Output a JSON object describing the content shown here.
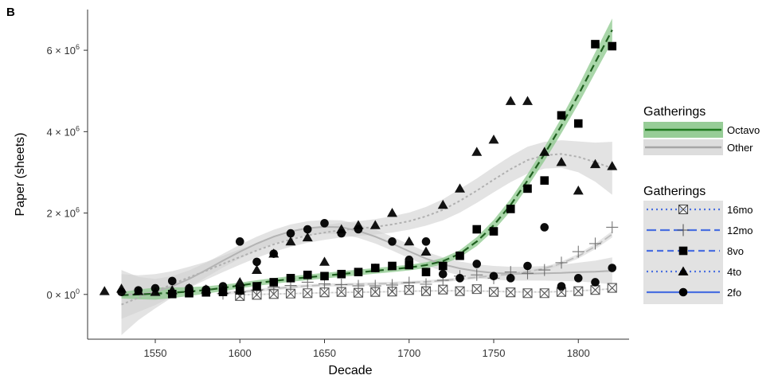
{
  "panel_tag": "B",
  "chart_data": {
    "type": "scatter",
    "xlabel": "Decade",
    "ylabel": "Paper (sheets)",
    "xlim": [
      1510,
      1830
    ],
    "ylim": [
      -1100000,
      7000000
    ],
    "x_ticks": [
      1550,
      1600,
      1650,
      1700,
      1750,
      1800
    ],
    "y_ticks": [
      {
        "value": 0,
        "mantissa": "0",
        "exponent": "0"
      },
      {
        "value": 2000000,
        "mantissa": "2",
        "exponent": "6"
      },
      {
        "value": 4000000,
        "mantissa": "4",
        "exponent": "6"
      },
      {
        "value": 6000000,
        "mantissa": "6",
        "exponent": "6"
      }
    ],
    "grid": false,
    "legend_position": "right",
    "trend_legend": {
      "title": "Gatherings",
      "entries": [
        {
          "label": "Octavo",
          "color": "#1f7a1f",
          "band": "#8cc88c"
        },
        {
          "label": "Other",
          "color": "#a6a6a6",
          "band": "#d9d9d9"
        }
      ]
    },
    "marker_legend": {
      "title": "Gatherings",
      "entries": [
        {
          "label": "16mo",
          "marker": "boxx",
          "linestyle": "dotted"
        },
        {
          "label": "12mo",
          "marker": "plus",
          "linestyle": "longdash"
        },
        {
          "label": "8vo",
          "marker": "square",
          "linestyle": "dashed"
        },
        {
          "label": "4to",
          "marker": "triangle",
          "linestyle": "dotted"
        },
        {
          "label": "2fo",
          "marker": "circle",
          "linestyle": "solid"
        }
      ]
    },
    "series": [
      {
        "name": "16mo",
        "marker": "boxx",
        "x": [
          1600,
          1610,
          1620,
          1630,
          1640,
          1650,
          1660,
          1670,
          1680,
          1690,
          1700,
          1710,
          1720,
          1730,
          1740,
          1750,
          1760,
          1770,
          1780,
          1790,
          1800,
          1810,
          1820
        ],
        "y": [
          -40000,
          -10000,
          10000,
          20000,
          30000,
          50000,
          60000,
          40000,
          60000,
          70000,
          110000,
          80000,
          120000,
          80000,
          130000,
          60000,
          50000,
          30000,
          30000,
          60000,
          80000,
          110000,
          160000
        ]
      },
      {
        "name": "12mo",
        "marker": "plus",
        "x": [
          1590,
          1600,
          1610,
          1620,
          1630,
          1640,
          1650,
          1660,
          1670,
          1680,
          1690,
          1700,
          1710,
          1720,
          1730,
          1740,
          1750,
          1760,
          1770,
          1780,
          1790,
          1800,
          1810,
          1820
        ],
        "y": [
          20000,
          60000,
          110000,
          180000,
          220000,
          300000,
          260000,
          240000,
          210000,
          210000,
          230000,
          290000,
          250000,
          350000,
          450000,
          480000,
          400000,
          550000,
          520000,
          600000,
          780000,
          1050000,
          1250000,
          1650000
        ]
      },
      {
        "name": "8vo",
        "marker": "square",
        "x": [
          1560,
          1570,
          1580,
          1590,
          1600,
          1610,
          1620,
          1630,
          1640,
          1650,
          1660,
          1670,
          1680,
          1690,
          1700,
          1710,
          1720,
          1730,
          1740,
          1750,
          1760,
          1770,
          1780,
          1790,
          1800,
          1810,
          1820
        ],
        "y": [
          10000,
          30000,
          50000,
          60000,
          100000,
          200000,
          300000,
          400000,
          480000,
          450000,
          500000,
          550000,
          650000,
          700000,
          720000,
          550000,
          700000,
          950000,
          1600000,
          1550000,
          2100000,
          2600000,
          2800000,
          4400000,
          4200000,
          6150000,
          6100000
        ]
      },
      {
        "name": "4to",
        "marker": "triangle",
        "x": [
          1520,
          1530,
          1540,
          1550,
          1560,
          1570,
          1580,
          1590,
          1600,
          1610,
          1620,
          1630,
          1640,
          1650,
          1660,
          1670,
          1680,
          1690,
          1700,
          1710,
          1720,
          1730,
          1740,
          1750,
          1760,
          1770,
          1780,
          1790,
          1800,
          1810,
          1820
        ],
        "y": [
          80000,
          140000,
          80000,
          60000,
          100000,
          150000,
          120000,
          100000,
          300000,
          600000,
          1000000,
          1300000,
          1400000,
          800000,
          1600000,
          1700000,
          1700000,
          2000000,
          1300000,
          1050000,
          2200000,
          2600000,
          3500000,
          3800000,
          4750000,
          4750000,
          3500000,
          3250000,
          2550000,
          3200000,
          3150000
        ]
      },
      {
        "name": "2fo",
        "marker": "circle",
        "x": [
          1530,
          1540,
          1550,
          1560,
          1570,
          1580,
          1590,
          1600,
          1610,
          1620,
          1630,
          1640,
          1650,
          1660,
          1670,
          1680,
          1690,
          1700,
          1710,
          1720,
          1730,
          1740,
          1750,
          1760,
          1770,
          1780,
          1790,
          1800,
          1810,
          1820
        ],
        "y": [
          60000,
          100000,
          150000,
          330000,
          150000,
          120000,
          200000,
          1300000,
          800000,
          1000000,
          1500000,
          1600000,
          1750000,
          1500000,
          1600000,
          650000,
          1300000,
          850000,
          1300000,
          500000,
          400000,
          750000,
          450000,
          400000,
          700000,
          1650000,
          200000,
          400000,
          300000,
          650000
        ]
      }
    ],
    "trends": [
      {
        "name": "Octavo",
        "x": [
          1530,
          1540,
          1550,
          1560,
          1570,
          1580,
          1590,
          1600,
          1610,
          1620,
          1630,
          1640,
          1650,
          1660,
          1670,
          1680,
          1690,
          1700,
          1710,
          1720,
          1730,
          1740,
          1750,
          1760,
          1770,
          1780,
          1790,
          1800,
          1810,
          1820
        ],
        "y": [
          -20000,
          0,
          20000,
          40000,
          70000,
          110000,
          160000,
          220000,
          280000,
          330000,
          380000,
          420000,
          460000,
          500000,
          540000,
          580000,
          620000,
          660000,
          720000,
          820000,
          1000000,
          1300000,
          1700000,
          2200000,
          2800000,
          3450000,
          4150000,
          4900000,
          5700000,
          6500000
        ],
        "band": [
          80000,
          120000,
          150000,
          130000,
          110000,
          90000,
          80000,
          70000,
          70000,
          70000,
          70000,
          70000,
          70000,
          70000,
          70000,
          70000,
          70000,
          70000,
          70000,
          80000,
          90000,
          110000,
          130000,
          150000,
          160000,
          170000,
          190000,
          220000,
          250000,
          280000
        ]
      },
      {
        "name": "4to",
        "x": [
          1530,
          1540,
          1550,
          1560,
          1570,
          1580,
          1590,
          1600,
          1610,
          1620,
          1630,
          1640,
          1650,
          1660,
          1670,
          1680,
          1690,
          1700,
          1710,
          1720,
          1730,
          1740,
          1750,
          1760,
          1770,
          1780,
          1790,
          1800,
          1810,
          1820
        ],
        "y": [
          -250000,
          -80000,
          80000,
          250000,
          420000,
          580000,
          750000,
          920000,
          1080000,
          1230000,
          1350000,
          1450000,
          1520000,
          1580000,
          1620000,
          1660000,
          1720000,
          1800000,
          1920000,
          2080000,
          2300000,
          2550000,
          2820000,
          3080000,
          3300000,
          3420000,
          3450000,
          3380000,
          3250000,
          3100000
        ],
        "band": [
          750000,
          550000,
          420000,
          320000,
          260000,
          220000,
          200000,
          190000,
          180000,
          180000,
          180000,
          180000,
          180000,
          180000,
          180000,
          190000,
          200000,
          210000,
          230000,
          260000,
          290000,
          300000,
          310000,
          320000,
          330000,
          330000,
          340000,
          380000,
          480000,
          650000
        ]
      },
      {
        "name": "2fo",
        "x": [
          1530,
          1540,
          1550,
          1560,
          1570,
          1580,
          1590,
          1600,
          1610,
          1620,
          1630,
          1640,
          1650,
          1660,
          1670,
          1680,
          1690,
          1700,
          1710,
          1720,
          1730,
          1740,
          1750,
          1760,
          1770,
          1780,
          1790,
          1800,
          1810,
          1820
        ],
        "y": [
          0,
          0,
          60000,
          200000,
          380000,
          600000,
          830000,
          1050000,
          1250000,
          1420000,
          1550000,
          1630000,
          1660000,
          1650000,
          1560000,
          1420000,
          1250000,
          1060000,
          880000,
          740000,
          640000,
          570000,
          530000,
          510000,
          510000,
          520000,
          530000,
          550000,
          560000,
          580000
        ],
        "band": [
          600000,
          430000,
          320000,
          250000,
          210000,
          180000,
          170000,
          170000,
          170000,
          170000,
          170000,
          170000,
          170000,
          170000,
          170000,
          170000,
          170000,
          170000,
          170000,
          170000,
          170000,
          170000,
          170000,
          170000,
          170000,
          180000,
          200000,
          230000,
          270000,
          330000
        ]
      },
      {
        "name": "12mo",
        "x": [
          1590,
          1600,
          1610,
          1620,
          1630,
          1640,
          1650,
          1660,
          1670,
          1680,
          1690,
          1700,
          1710,
          1720,
          1730,
          1740,
          1750,
          1760,
          1770,
          1780,
          1790,
          1800,
          1810,
          1820
        ],
        "y": [
          30000,
          60000,
          100000,
          140000,
          180000,
          210000,
          230000,
          240000,
          250000,
          260000,
          270000,
          290000,
          310000,
          340000,
          380000,
          420000,
          460000,
          500000,
          560000,
          640000,
          760000,
          940000,
          1180000,
          1480000
        ],
        "band": [
          40000,
          40000,
          40000,
          40000,
          40000,
          40000,
          40000,
          40000,
          40000,
          40000,
          40000,
          40000,
          40000,
          40000,
          40000,
          40000,
          40000,
          40000,
          40000,
          40000,
          50000,
          60000,
          70000,
          80000
        ]
      },
      {
        "name": "16mo",
        "x": [
          1600,
          1610,
          1620,
          1630,
          1640,
          1650,
          1660,
          1670,
          1680,
          1690,
          1700,
          1710,
          1720,
          1730,
          1740,
          1750,
          1760,
          1770,
          1780,
          1790,
          1800,
          1810,
          1820
        ],
        "y": [
          -10000,
          0,
          10000,
          20000,
          30000,
          40000,
          50000,
          55000,
          60000,
          70000,
          80000,
          85000,
          90000,
          90000,
          85000,
          75000,
          65000,
          60000,
          60000,
          70000,
          90000,
          110000,
          140000
        ],
        "band": [
          20000,
          20000,
          20000,
          20000,
          20000,
          20000,
          20000,
          20000,
          20000,
          20000,
          20000,
          20000,
          20000,
          20000,
          20000,
          20000,
          20000,
          20000,
          20000,
          20000,
          20000,
          20000,
          20000
        ]
      }
    ]
  }
}
